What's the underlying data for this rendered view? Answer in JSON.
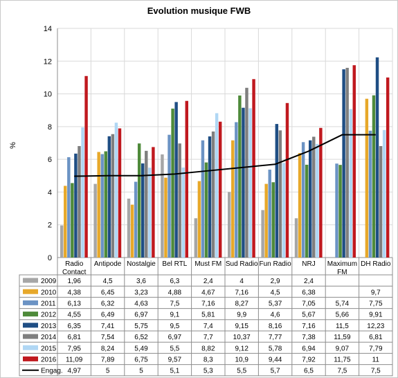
{
  "chart_data": {
    "type": "bar",
    "title": "Evolution musique FWB",
    "xlabel": "",
    "ylabel": "%",
    "ylim": [
      0,
      14
    ],
    "yticks": [
      0,
      2,
      4,
      6,
      8,
      10,
      12,
      14
    ],
    "grid": true,
    "legend": "table-below",
    "categories": [
      "Radio Contact",
      "Antipode",
      "Nostalgie",
      "Bel RTL",
      "Must FM",
      "Sud Radio",
      "Fun Radio",
      "NRJ",
      "Maximum FM",
      "DH Radio"
    ],
    "category_lines": [
      [
        "Radio",
        "Contact"
      ],
      [
        "Antipode"
      ],
      [
        "Nostalgie"
      ],
      [
        "Bel RTL"
      ],
      [
        "Must FM"
      ],
      [
        "Sud Radio"
      ],
      [
        "Fun Radio"
      ],
      [
        "NRJ"
      ],
      [
        "Maximum",
        "FM"
      ],
      [
        "DH Radio"
      ]
    ],
    "series": [
      {
        "name": "2009",
        "type": "bar",
        "color": "#a6a6a6",
        "values": [
          1.96,
          4.5,
          3.6,
          6.3,
          2.4,
          4,
          2.9,
          2.4,
          null,
          null
        ],
        "labels": [
          "1,96",
          "4,5",
          "3,6",
          "6,3",
          "2,4",
          "4",
          "2,9",
          "2,4",
          "",
          ""
        ]
      },
      {
        "name": "2010",
        "type": "bar",
        "color": "#e7a82a",
        "values": [
          4.38,
          6.45,
          3.23,
          4.88,
          4.67,
          7.16,
          4.5,
          6.38,
          null,
          9.7
        ],
        "labels": [
          "4,38",
          "6,45",
          "3,23",
          "4,88",
          "4,67",
          "7,16",
          "4,5",
          "6,38",
          "",
          "9,7"
        ]
      },
      {
        "name": "2011",
        "type": "bar",
        "color": "#6b93c4",
        "values": [
          6.13,
          6.32,
          4.63,
          7.5,
          7.16,
          8.27,
          5.37,
          7.05,
          5.74,
          7.75
        ],
        "labels": [
          "6,13",
          "6,32",
          "4,63",
          "7,5",
          "7,16",
          "8,27",
          "5,37",
          "7,05",
          "5,74",
          "7,75"
        ]
      },
      {
        "name": "2012",
        "type": "bar",
        "color": "#4e8a3a",
        "values": [
          4.55,
          6.49,
          6.97,
          9.1,
          5.81,
          9.9,
          4.6,
          5.67,
          5.66,
          9.91
        ],
        "labels": [
          "4,55",
          "6,49",
          "6,97",
          "9,1",
          "5,81",
          "9,9",
          "4,6",
          "5,67",
          "5,66",
          "9,91"
        ]
      },
      {
        "name": "2013",
        "type": "bar",
        "color": "#1f4e84",
        "values": [
          6.35,
          7.41,
          5.75,
          9.5,
          7.4,
          9.15,
          8.16,
          7.16,
          11.5,
          12.23
        ],
        "labels": [
          "6,35",
          "7,41",
          "5,75",
          "9,5",
          "7,4",
          "9,15",
          "8,16",
          "7,16",
          "11,5",
          "12,23"
        ]
      },
      {
        "name": "2014",
        "type": "bar",
        "color": "#7f7f7f",
        "values": [
          6.81,
          7.54,
          6.52,
          6.97,
          7.7,
          10.37,
          7.77,
          7.38,
          11.59,
          6.81
        ],
        "labels": [
          "6,81",
          "7,54",
          "6,52",
          "6,97",
          "7,7",
          "10,37",
          "7,77",
          "7,38",
          "11,59",
          "6,81"
        ]
      },
      {
        "name": "2015",
        "type": "bar",
        "color": "#b0d7f4",
        "values": [
          7.95,
          8.24,
          5.49,
          5.5,
          8.82,
          9.12,
          5.78,
          6.94,
          9.07,
          7.79
        ],
        "labels": [
          "7,95",
          "8,24",
          "5,49",
          "5,5",
          "8,82",
          "9,12",
          "5,78",
          "6,94",
          "9,07",
          "7,79"
        ]
      },
      {
        "name": "2016",
        "type": "bar",
        "color": "#c0191f",
        "values": [
          11.09,
          7.89,
          6.75,
          9.57,
          8.3,
          10.9,
          9.44,
          7.92,
          11.75,
          11
        ],
        "labels": [
          "11,09",
          "7,89",
          "6,75",
          "9,57",
          "8,3",
          "10,9",
          "9,44",
          "7,92",
          "11,75",
          "11"
        ]
      },
      {
        "name": "Engag.",
        "type": "line",
        "color": "#000000",
        "values": [
          4.97,
          5,
          5,
          5.1,
          5.3,
          5.5,
          5.7,
          6.5,
          7.5,
          7.5
        ],
        "labels": [
          "4,97",
          "5",
          "5",
          "5,1",
          "5,3",
          "5,5",
          "5,7",
          "6,5",
          "7,5",
          "7,5"
        ]
      }
    ]
  }
}
